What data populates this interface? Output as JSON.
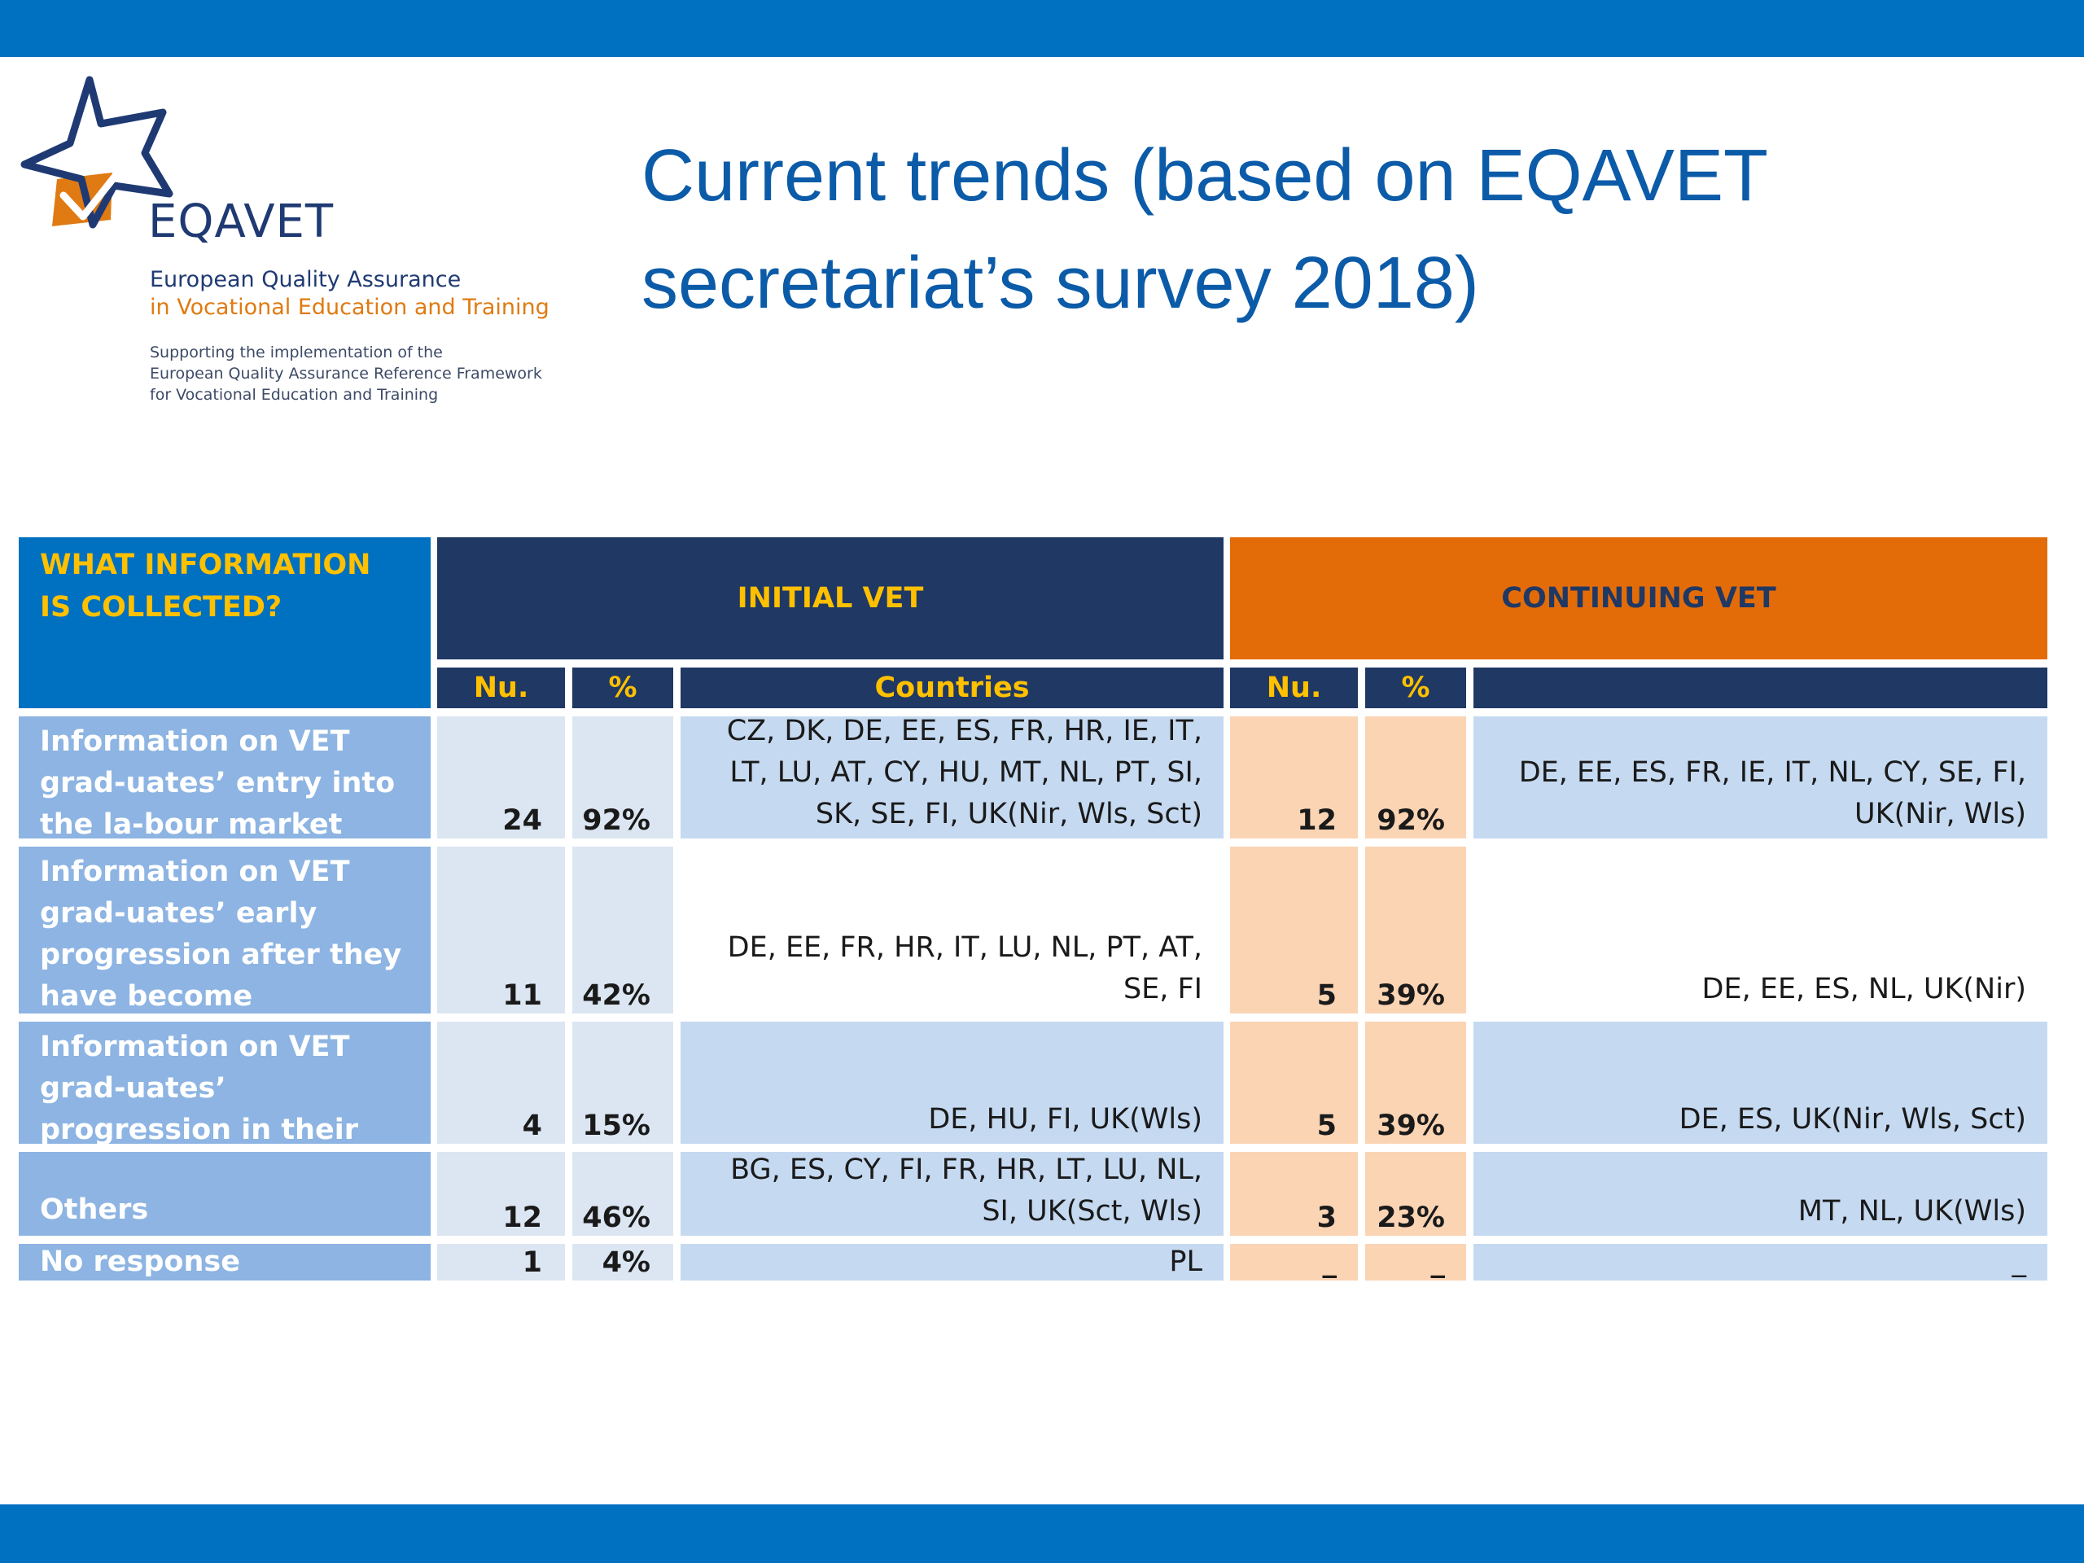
{
  "logo": {
    "name": "EQAVET",
    "line1": "European Quality Assurance",
    "line2": "in Vocational Education and Training",
    "small": [
      "Supporting the implementation of the",
      "European Quality Assurance Reference Framework",
      "for Vocational Education and Training"
    ]
  },
  "title": {
    "line1": "Current trends (based on EQAVET",
    "line2": "secretariat’s survey 2018)"
  },
  "table": {
    "corner_header": "WHAT INFORMATION IS COLLECTED?",
    "group_initial": "INITIAL VET",
    "group_continuing": "CONTINUING VET",
    "subheaders": {
      "ivet_num": "Nu.",
      "ivet_pct": "%",
      "ivet_countries": "Countries",
      "cvet_num": "Nu.",
      "cvet_pct": "%",
      "cvet_countries": ""
    },
    "rows": [
      {
        "label": "Information on VET grad-uates’ entry into the la-bour market",
        "ivet_num": "24",
        "ivet_pct": "92%",
        "ivet_countries": "CZ, DK, DE, EE, ES, FR, HR, IE, IT, LT, LU, AT, CY, HU, MT, NL, PT, SI, SK, SE, FI, UK(Nir, Wls, Sct)",
        "cvet_num": "12",
        "cvet_pct": "92%",
        "cvet_countries": "DE, EE, ES, FR, IE, IT, NL, CY, SE, FI, UK(Nir, Wls)"
      },
      {
        "label": "Information on VET grad-uates’ early progression after they have become employed",
        "ivet_num": "11",
        "ivet_pct": "42%",
        "ivet_countries": "DE, EE, FR, HR, IT, LU, NL, PT, AT, SE, FI",
        "cvet_num": "5",
        "cvet_pct": "39%",
        "cvet_countries": "DE, EE, ES, NL, UK(Nir)"
      },
      {
        "label": "Information on VET grad-uates’ progression in their career",
        "ivet_num": "4",
        "ivet_pct": "15%",
        "ivet_countries": "DE, HU, FI, UK(Wls)",
        "cvet_num": "5",
        "cvet_pct": "39%",
        "cvet_countries": "DE, ES, UK(Nir, Wls, Sct)"
      },
      {
        "label": "Others",
        "ivet_num": "12",
        "ivet_pct": "46%",
        "ivet_countries": "BG, ES, CY, FI, FR, HR, LT, LU, NL, SI, UK(Sct, Wls)",
        "cvet_num": "3",
        "cvet_pct": "23%",
        "cvet_countries": "MT, NL, UK(Wls)"
      },
      {
        "label": "No response",
        "ivet_num": "1",
        "ivet_pct": "4%",
        "ivet_countries": "PL",
        "cvet_num": "_",
        "cvet_pct": "_",
        "cvet_countries": "_"
      }
    ]
  },
  "colors": {
    "top_bar": "#0070c0",
    "initial_header": "#1f3864",
    "continuing_header": "#e36c09",
    "header_text": "#ffc000",
    "row_label": "#8db4e2",
    "light_blue": "#c5d9f1",
    "peach": "#fbd4b4",
    "title": "#0b5ba8"
  }
}
